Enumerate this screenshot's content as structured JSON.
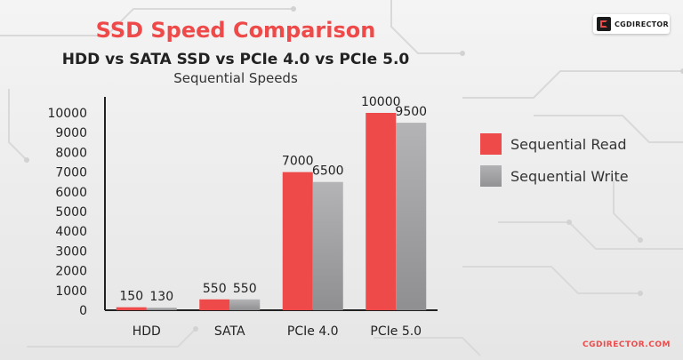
{
  "brand": {
    "logo_text": "CGDIRECTOR",
    "footer_text": "CGDIRECTOR.COM"
  },
  "colors": {
    "read": "#ef4a4a",
    "write": "#a3a3a5",
    "title": "#ef4a4a"
  },
  "chart_data": {
    "type": "bar",
    "title": "SSD Speed Comparison",
    "subtitle": "HDD vs SATA SSD vs PCIe 4.0 vs PCIe 5.0",
    "subtitle2": "Sequential Speeds",
    "categories": [
      "HDD",
      "SATA",
      "PCIe 4.0",
      "PCIe 5.0"
    ],
    "series": [
      {
        "name": "Sequential Read",
        "values": [
          150,
          550,
          7000,
          10000
        ]
      },
      {
        "name": "Sequential Write",
        "values": [
          130,
          550,
          6500,
          9500
        ]
      }
    ],
    "yticks": [
      0,
      1000,
      2000,
      3000,
      4000,
      5000,
      6000,
      7000,
      8000,
      9000,
      10000
    ],
    "ylim": [
      0,
      10000
    ],
    "xlabel": "",
    "ylabel": "",
    "legend_position": "right",
    "grid": false
  }
}
